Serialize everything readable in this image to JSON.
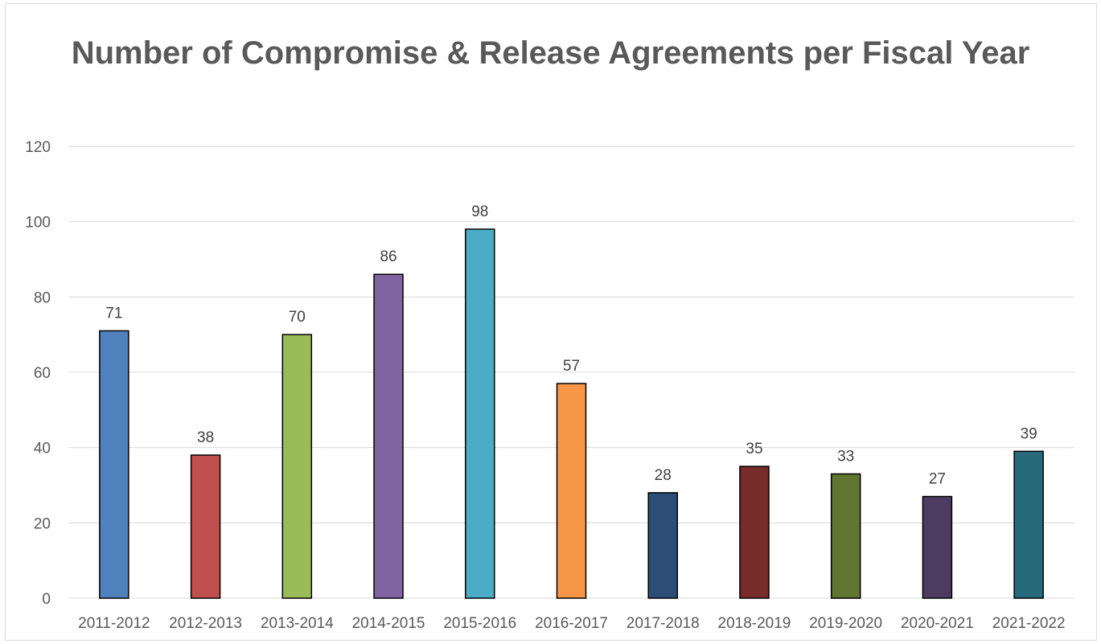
{
  "chart_data": {
    "type": "bar",
    "title": "Number of Compromise & Release Agreements per Fiscal Year",
    "xlabel": "",
    "ylabel": "",
    "categories": [
      "2011-2012",
      "2012-2013",
      "2013-2014",
      "2014-2015",
      "2015-2016",
      "2016-2017",
      "2017-2018",
      "2018-2019",
      "2019-2020",
      "2020-2021",
      "2021-2022"
    ],
    "values": [
      71,
      38,
      70,
      86,
      98,
      57,
      28,
      35,
      33,
      27,
      39
    ],
    "ylim": [
      0,
      120
    ],
    "yticks": [
      0,
      20,
      40,
      60,
      80,
      100,
      120
    ],
    "grid": true,
    "legend": "none",
    "data_labels": true,
    "colors": [
      "#4f81bd",
      "#c0504d",
      "#9bbb59",
      "#8064a2",
      "#4bacc6",
      "#f79646",
      "#2c4d75",
      "#772c2a",
      "#5f7530",
      "#4d3b62",
      "#276a7c"
    ]
  }
}
